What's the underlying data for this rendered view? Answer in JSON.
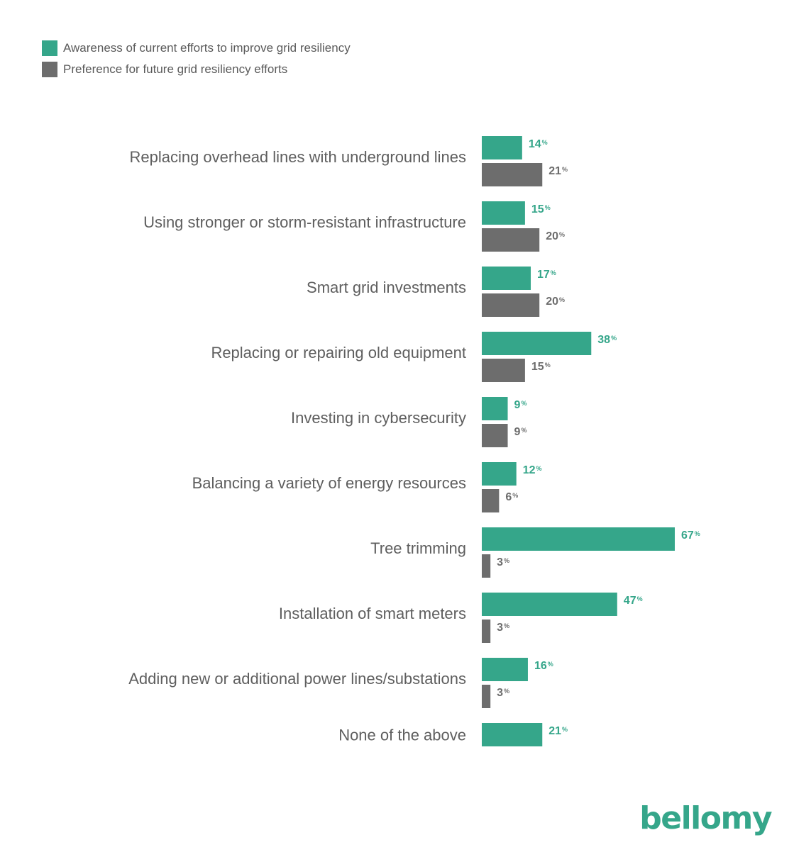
{
  "brand": {
    "logo_text": "bellomy",
    "color": "#35a68a"
  },
  "colors": {
    "awareness": "#35a68a",
    "preference": "#6d6d6d"
  },
  "legend": {
    "awareness": "Awareness of current efforts to improve grid resiliency",
    "preference": "Preference for future grid resiliency efforts"
  },
  "chart_data": {
    "type": "bar",
    "orientation": "horizontal",
    "legend_position": "top-left",
    "grid": false,
    "value_suffix": "%",
    "xlim": [
      0,
      70
    ],
    "categories": [
      "Replacing overhead lines with underground lines",
      "Using stronger or storm-resistant infrastructure",
      "Smart grid investments",
      "Replacing or repairing old equipment",
      "Investing in cybersecurity",
      "Balancing a variety of energy resources",
      "Tree trimming",
      "Installation of smart meters",
      "Adding new or additional power lines/substations",
      "None of the above"
    ],
    "series": [
      {
        "name": "Awareness of current efforts to improve grid resiliency",
        "values": [
          14,
          15,
          17,
          38,
          9,
          12,
          67,
          47,
          16,
          21
        ]
      },
      {
        "name": "Preference for future grid resiliency efforts",
        "values": [
          21,
          20,
          20,
          15,
          9,
          6,
          3,
          3,
          3,
          null
        ]
      }
    ]
  }
}
